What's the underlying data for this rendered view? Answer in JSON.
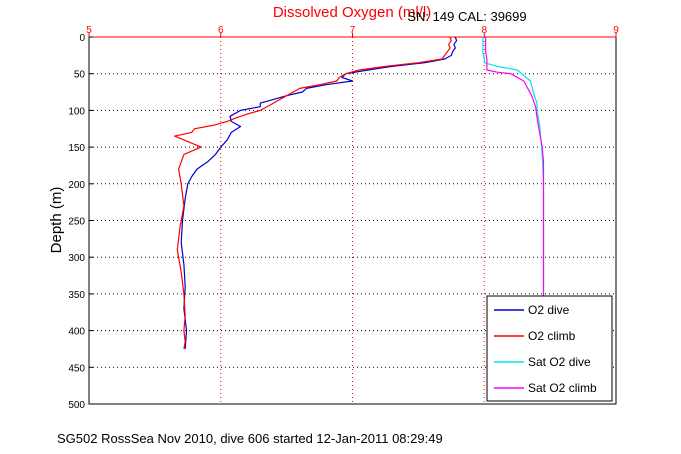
{
  "chart_data": {
    "type": "line",
    "title": "Dissolved Oxygen (ml/l)",
    "subtitle": "SN: 149  CAL: 39699",
    "ylabel": "Depth (m)",
    "xlabel": "",
    "footer": "SG502 RossSea Nov 2010, dive 606 started 12-Jan-2011 08:29:49",
    "xlim": [
      5,
      9
    ],
    "ylim": [
      0,
      500
    ],
    "y_reversed": true,
    "x_axis_position": "top",
    "xticks": [
      "5",
      "6",
      "7",
      "8",
      "9"
    ],
    "yticks": [
      "0",
      "50",
      "100",
      "150",
      "200",
      "250",
      "300",
      "350",
      "400",
      "450",
      "500"
    ],
    "grid": true,
    "legend_position": "bottom-right",
    "series": [
      {
        "name": "O2 dive",
        "color": "#0000cc",
        "x": [
          7.78,
          7.79,
          7.77,
          7.78,
          7.76,
          7.75,
          7.7,
          7.55,
          7.3,
          7.12,
          6.95,
          6.92,
          7.0,
          6.8,
          6.65,
          6.62,
          6.5,
          6.4,
          6.3,
          6.3,
          6.15,
          6.07,
          6.08,
          6.15,
          6.08,
          6.05,
          6.0,
          5.96,
          5.9,
          5.82,
          5.78,
          5.75,
          5.73,
          5.71,
          5.7,
          5.72,
          5.73,
          5.72,
          5.74,
          5.73
        ],
        "y": [
          0,
          5,
          10,
          15,
          20,
          25,
          30,
          35,
          40,
          45,
          50,
          55,
          60,
          65,
          70,
          75,
          80,
          85,
          90,
          95,
          100,
          108,
          115,
          122,
          130,
          140,
          150,
          160,
          170,
          180,
          190,
          200,
          220,
          250,
          280,
          310,
          340,
          370,
          400,
          425
        ]
      },
      {
        "name": "O2 climb",
        "color": "#ff0000",
        "x": [
          7.74,
          7.75,
          7.73,
          7.74,
          7.72,
          7.7,
          7.68,
          7.5,
          7.25,
          7.05,
          6.95,
          6.9,
          6.88,
          6.75,
          6.6,
          6.5,
          6.4,
          6.3,
          6.2,
          6.12,
          6.05,
          5.95,
          5.8,
          5.78,
          5.65,
          5.85,
          5.72,
          5.68,
          5.7,
          5.72,
          5.69,
          5.67,
          5.7,
          5.72,
          5.73,
          5.72,
          5.73,
          5.72
        ],
        "y": [
          0,
          5,
          10,
          15,
          20,
          25,
          30,
          35,
          40,
          45,
          50,
          55,
          60,
          65,
          70,
          80,
          90,
          100,
          105,
          110,
          115,
          120,
          125,
          130,
          135,
          150,
          160,
          180,
          200,
          230,
          260,
          290,
          320,
          350,
          380,
          400,
          415,
          425
        ]
      },
      {
        "name": "Sat O2 dive",
        "color": "#00e5e5",
        "x": [
          7.99,
          7.99,
          8.0,
          8.0,
          8.1,
          8.25,
          8.35,
          8.38,
          8.4,
          8.4,
          8.42,
          8.43,
          8.44,
          8.45,
          8.45,
          8.45,
          8.45,
          8.45,
          8.45
        ],
        "y": [
          0,
          20,
          30,
          35,
          40,
          45,
          60,
          80,
          90,
          100,
          120,
          140,
          160,
          200,
          250,
          300,
          330,
          350,
          360
        ]
      },
      {
        "name": "Sat O2 climb",
        "color": "#ff00ff",
        "x": [
          8.01,
          8.01,
          8.02,
          8.02,
          8.1,
          8.2,
          8.3,
          8.36,
          8.39,
          8.4,
          8.42,
          8.44,
          8.45,
          8.45,
          8.45,
          8.45,
          8.45,
          8.45,
          8.45
        ],
        "y": [
          0,
          20,
          30,
          45,
          48,
          50,
          60,
          80,
          95,
          110,
          130,
          150,
          170,
          200,
          250,
          300,
          330,
          350,
          360
        ]
      }
    ]
  }
}
